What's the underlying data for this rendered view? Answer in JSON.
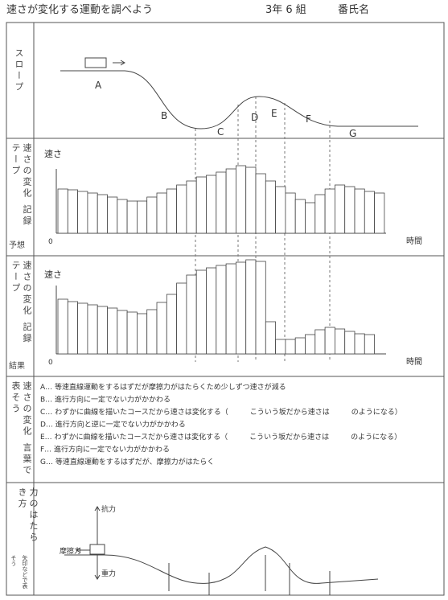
{
  "header": {
    "title": "速さが変化する運動を調べよう",
    "class": "3年 6 組",
    "name": "番氏名"
  },
  "rows": {
    "slope": {
      "label": "スロープ",
      "sections": [
        "A",
        "B",
        "C",
        "D",
        "E",
        "F",
        "G"
      ]
    },
    "prediction": {
      "label": "速さの変化 記録テープ",
      "sub": "予想",
      "y_label": "速さ",
      "origin": "0",
      "x_label": "時間",
      "tapes": [
        55,
        54,
        52,
        50,
        48,
        45,
        42,
        40,
        40,
        45,
        50,
        55,
        60,
        65,
        70,
        72,
        76,
        80,
        84,
        82,
        74,
        65,
        58,
        50,
        42,
        38,
        48,
        55,
        60,
        58,
        55,
        52,
        50
      ]
    },
    "result": {
      "label": "速さの変化 記録テープ",
      "sub": "結果",
      "y_label": "速さ",
      "origin": "0",
      "x_label": "時間",
      "tapes": [
        68,
        65,
        63,
        61,
        59,
        57,
        54,
        52,
        50,
        55,
        64,
        74,
        88,
        98,
        104,
        107,
        110,
        112,
        114,
        117,
        115,
        40,
        18,
        18,
        20,
        24,
        30,
        33,
        31,
        28,
        25,
        24
      ]
    },
    "words": {
      "label": "速さの変化 言葉で表そう",
      "lines": [
        "A… 等速直線運動をするはずだが摩擦力がはたらくため少しずつ速さが減る",
        "B… 進行方向に一定でない力がかかわる",
        "C… わずかに曲線を描いたコースだから速さは変化する（　　　こういう坂だから速さは　　　のようになる）",
        "D… 進行方向と逆に一定でない力がかかわる",
        "E… わずかに曲線を描いたコースだから速さは変化する（　　　こういう坂だから速さは　　　のようになる）",
        "F… 進行方向に一定でない力がかかわる",
        "G… 等速直線運動をするはずだが、摩擦力がはたらく"
      ]
    },
    "forces": {
      "label": "力のはたらき方",
      "sub": "矢印などで表そう",
      "friction": "摩擦力",
      "normal": "抗力",
      "gravity": "重力"
    }
  }
}
